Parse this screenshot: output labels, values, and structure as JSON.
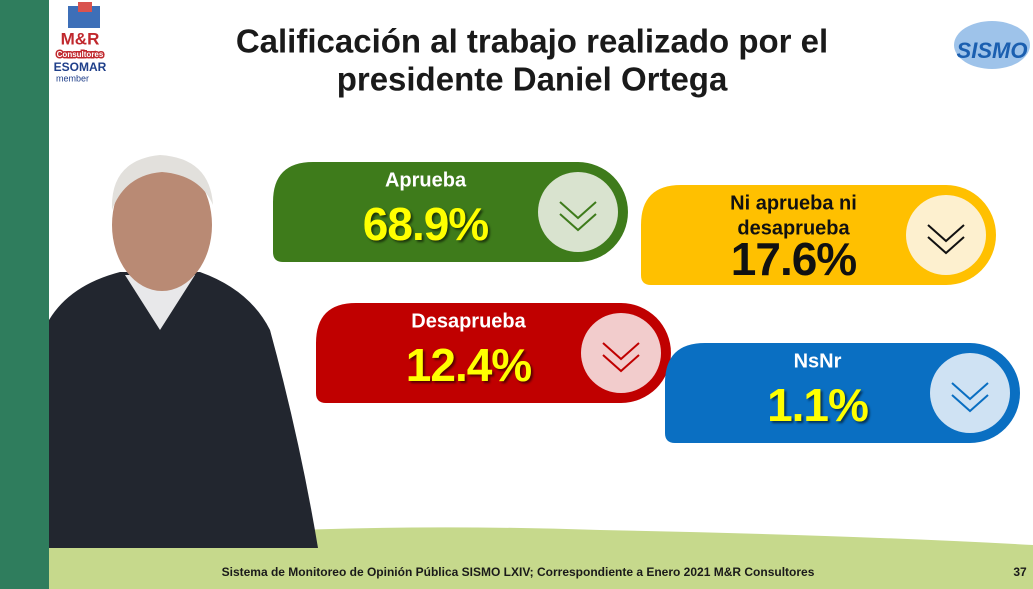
{
  "header": {
    "title": [
      "Calificación al trabajo realizado por el",
      "presidente Daniel Ortega"
    ]
  },
  "logo": {
    "brand": "M&R",
    "sub": "Consultores",
    "esomar": "ESOMAR",
    "member": "member"
  },
  "sismo": "SISMO",
  "cards": [
    {
      "label": [
        "Aprueba"
      ],
      "value": "68.9%"
    },
    {
      "label": [
        "Ni aprueba ni",
        "desaprueba"
      ],
      "value": "17.6%"
    },
    {
      "label": [
        "Desaprueba"
      ],
      "value": "12.4%"
    },
    {
      "label": [
        "NsNr"
      ],
      "value": "1.1%"
    }
  ],
  "footer": {
    "text": "Sistema de Monitoreo de Opinión Pública SISMO LXIV; Correspondiente a Enero 2021 M&R Consultores",
    "page": "37"
  }
}
